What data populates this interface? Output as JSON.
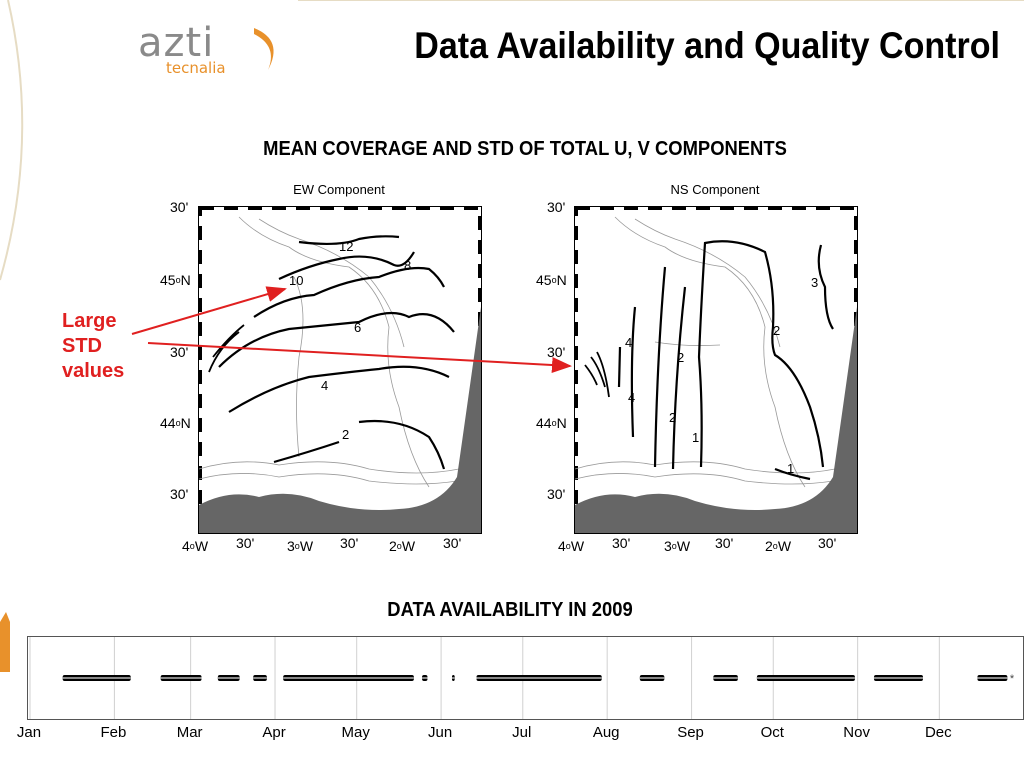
{
  "header": {
    "logo_main": "azti",
    "logo_sub": "tecnalia",
    "title": "Data Availability and Quality Control"
  },
  "section1": {
    "title": "MEAN COVERAGE AND STD OF TOTAL U, V COMPONENTS",
    "panels": [
      {
        "title": "EW Component",
        "contour_labels": [
          "12",
          "10",
          "8",
          "6",
          "4",
          "2"
        ]
      },
      {
        "title": "NS Component",
        "contour_labels": [
          "3",
          "2",
          "4",
          "4",
          "2",
          "2",
          "1",
          "1"
        ]
      }
    ],
    "lat_ticks": [
      "30'",
      "45",
      "N",
      "30'",
      "44",
      "N",
      "30'"
    ],
    "lon_ticks": [
      "4",
      "W",
      "30'",
      "3",
      "W",
      "30'",
      "2",
      "W",
      "30'"
    ],
    "degree_symbol": "o"
  },
  "annotation": {
    "lines": [
      "Large",
      "STD",
      "values"
    ],
    "color": "#e02020"
  },
  "section2": {
    "title": "DATA AVAILABILITY IN 2009",
    "months": [
      "Jan",
      "Feb",
      "Mar",
      "Apr",
      "May",
      "Jun",
      "Jul",
      "Aug",
      "Sep",
      "Oct",
      "Nov",
      "Dec"
    ]
  },
  "chart_data": {
    "type": "scatter",
    "title": "DATA AVAILABILITY IN 2009",
    "x_unit": "day of year 2009",
    "xlim": [
      1,
      365
    ],
    "categories": [
      "Jan",
      "Feb",
      "Mar",
      "Apr",
      "May",
      "Jun",
      "Jul",
      "Aug",
      "Sep",
      "Oct",
      "Nov",
      "Dec"
    ],
    "available_periods": [
      {
        "start": "2009-01-13",
        "end": "2009-02-07"
      },
      {
        "start": "2009-02-18",
        "end": "2009-03-05"
      },
      {
        "start": "2009-03-11",
        "end": "2009-03-19"
      },
      {
        "start": "2009-03-24",
        "end": "2009-03-29"
      },
      {
        "start": "2009-04-04",
        "end": "2009-05-22"
      },
      {
        "start": "2009-05-25",
        "end": "2009-05-27"
      },
      {
        "start": "2009-06-05",
        "end": "2009-06-06"
      },
      {
        "start": "2009-06-14",
        "end": "2009-07-30"
      },
      {
        "start": "2009-08-13",
        "end": "2009-08-22"
      },
      {
        "start": "2009-09-09",
        "end": "2009-09-18"
      },
      {
        "start": "2009-09-25",
        "end": "2009-10-31"
      },
      {
        "start": "2009-11-07",
        "end": "2009-11-25"
      },
      {
        "start": "2009-12-15",
        "end": "2009-12-26"
      }
    ],
    "isolated_points": [
      "2009-12-28"
    ],
    "grid": true,
    "marker_color": "#000000"
  }
}
